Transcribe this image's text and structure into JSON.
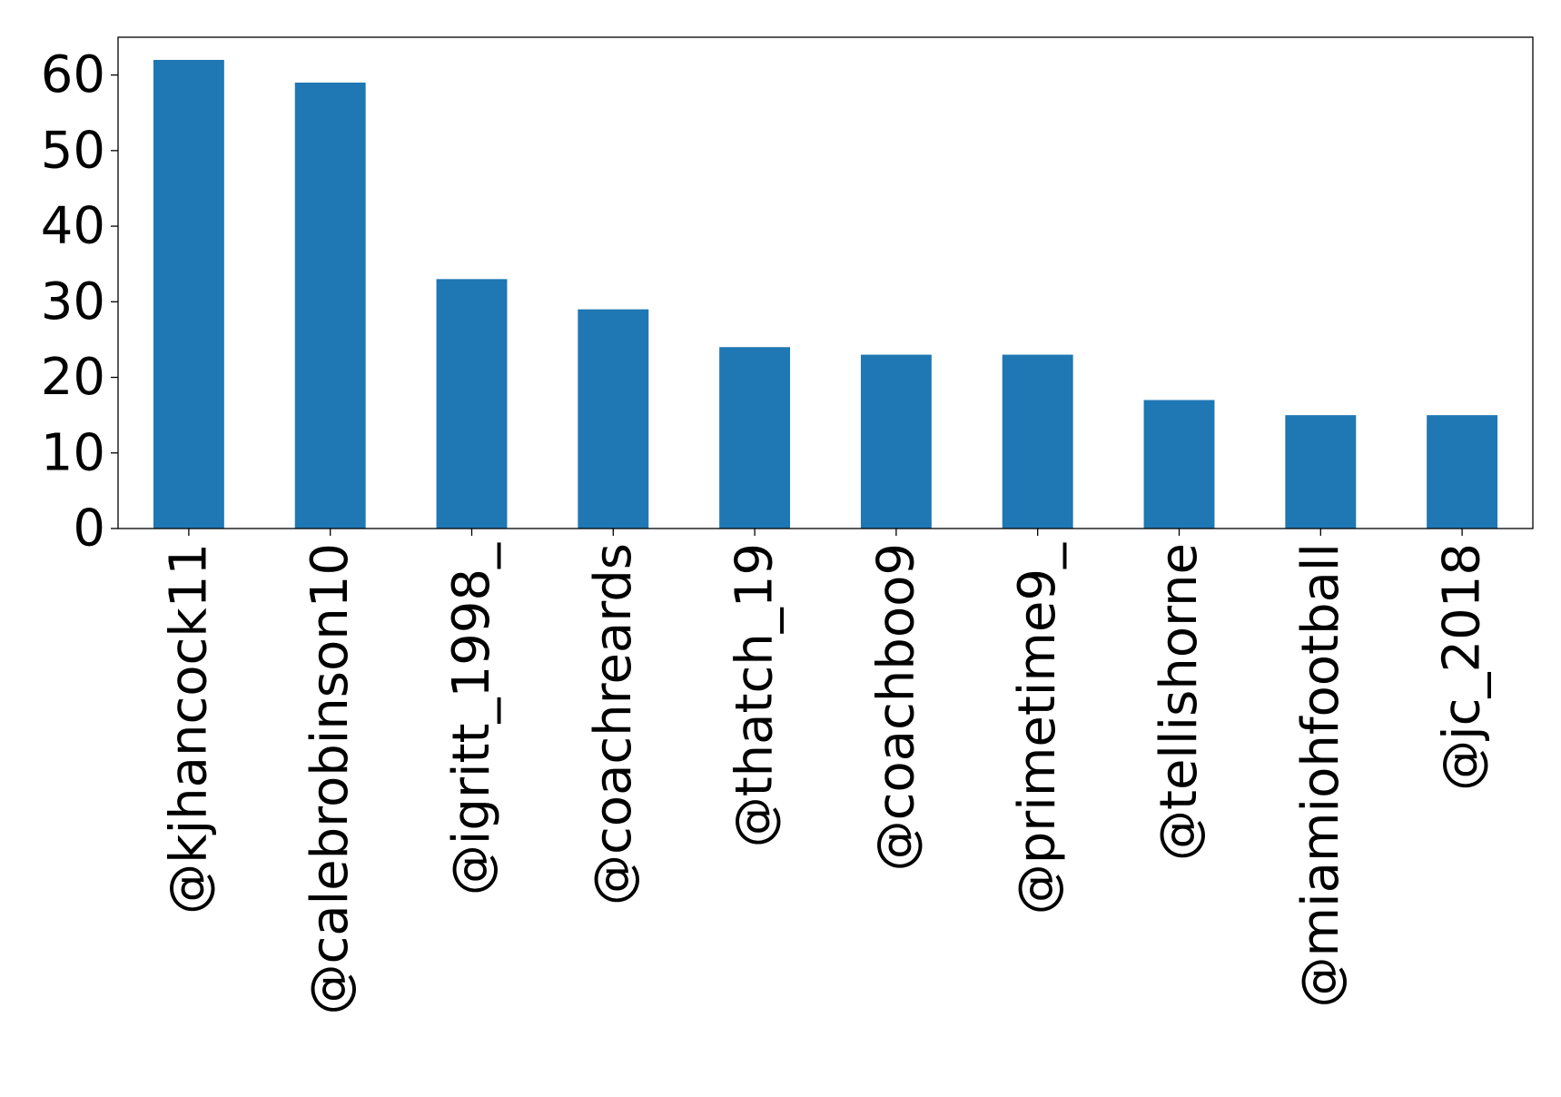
{
  "chart_data": {
    "type": "bar",
    "categories": [
      "@kjhancock11",
      "@calebrobinson10",
      "@igritt_1998_",
      "@coachreards",
      "@thatch_19",
      "@coachboo9",
      "@primetime9_",
      "@tellishorne",
      "@miamiohfootball",
      "@jc_2018"
    ],
    "values": [
      62,
      59,
      33,
      29,
      24,
      23,
      23,
      17,
      15,
      15
    ],
    "ylim": [
      0,
      65
    ],
    "yticks": [
      0,
      10,
      20,
      30,
      40,
      50,
      60
    ],
    "title": "",
    "xlabel": "",
    "ylabel": "",
    "grid": false,
    "bar_color": "#1f77b4"
  }
}
